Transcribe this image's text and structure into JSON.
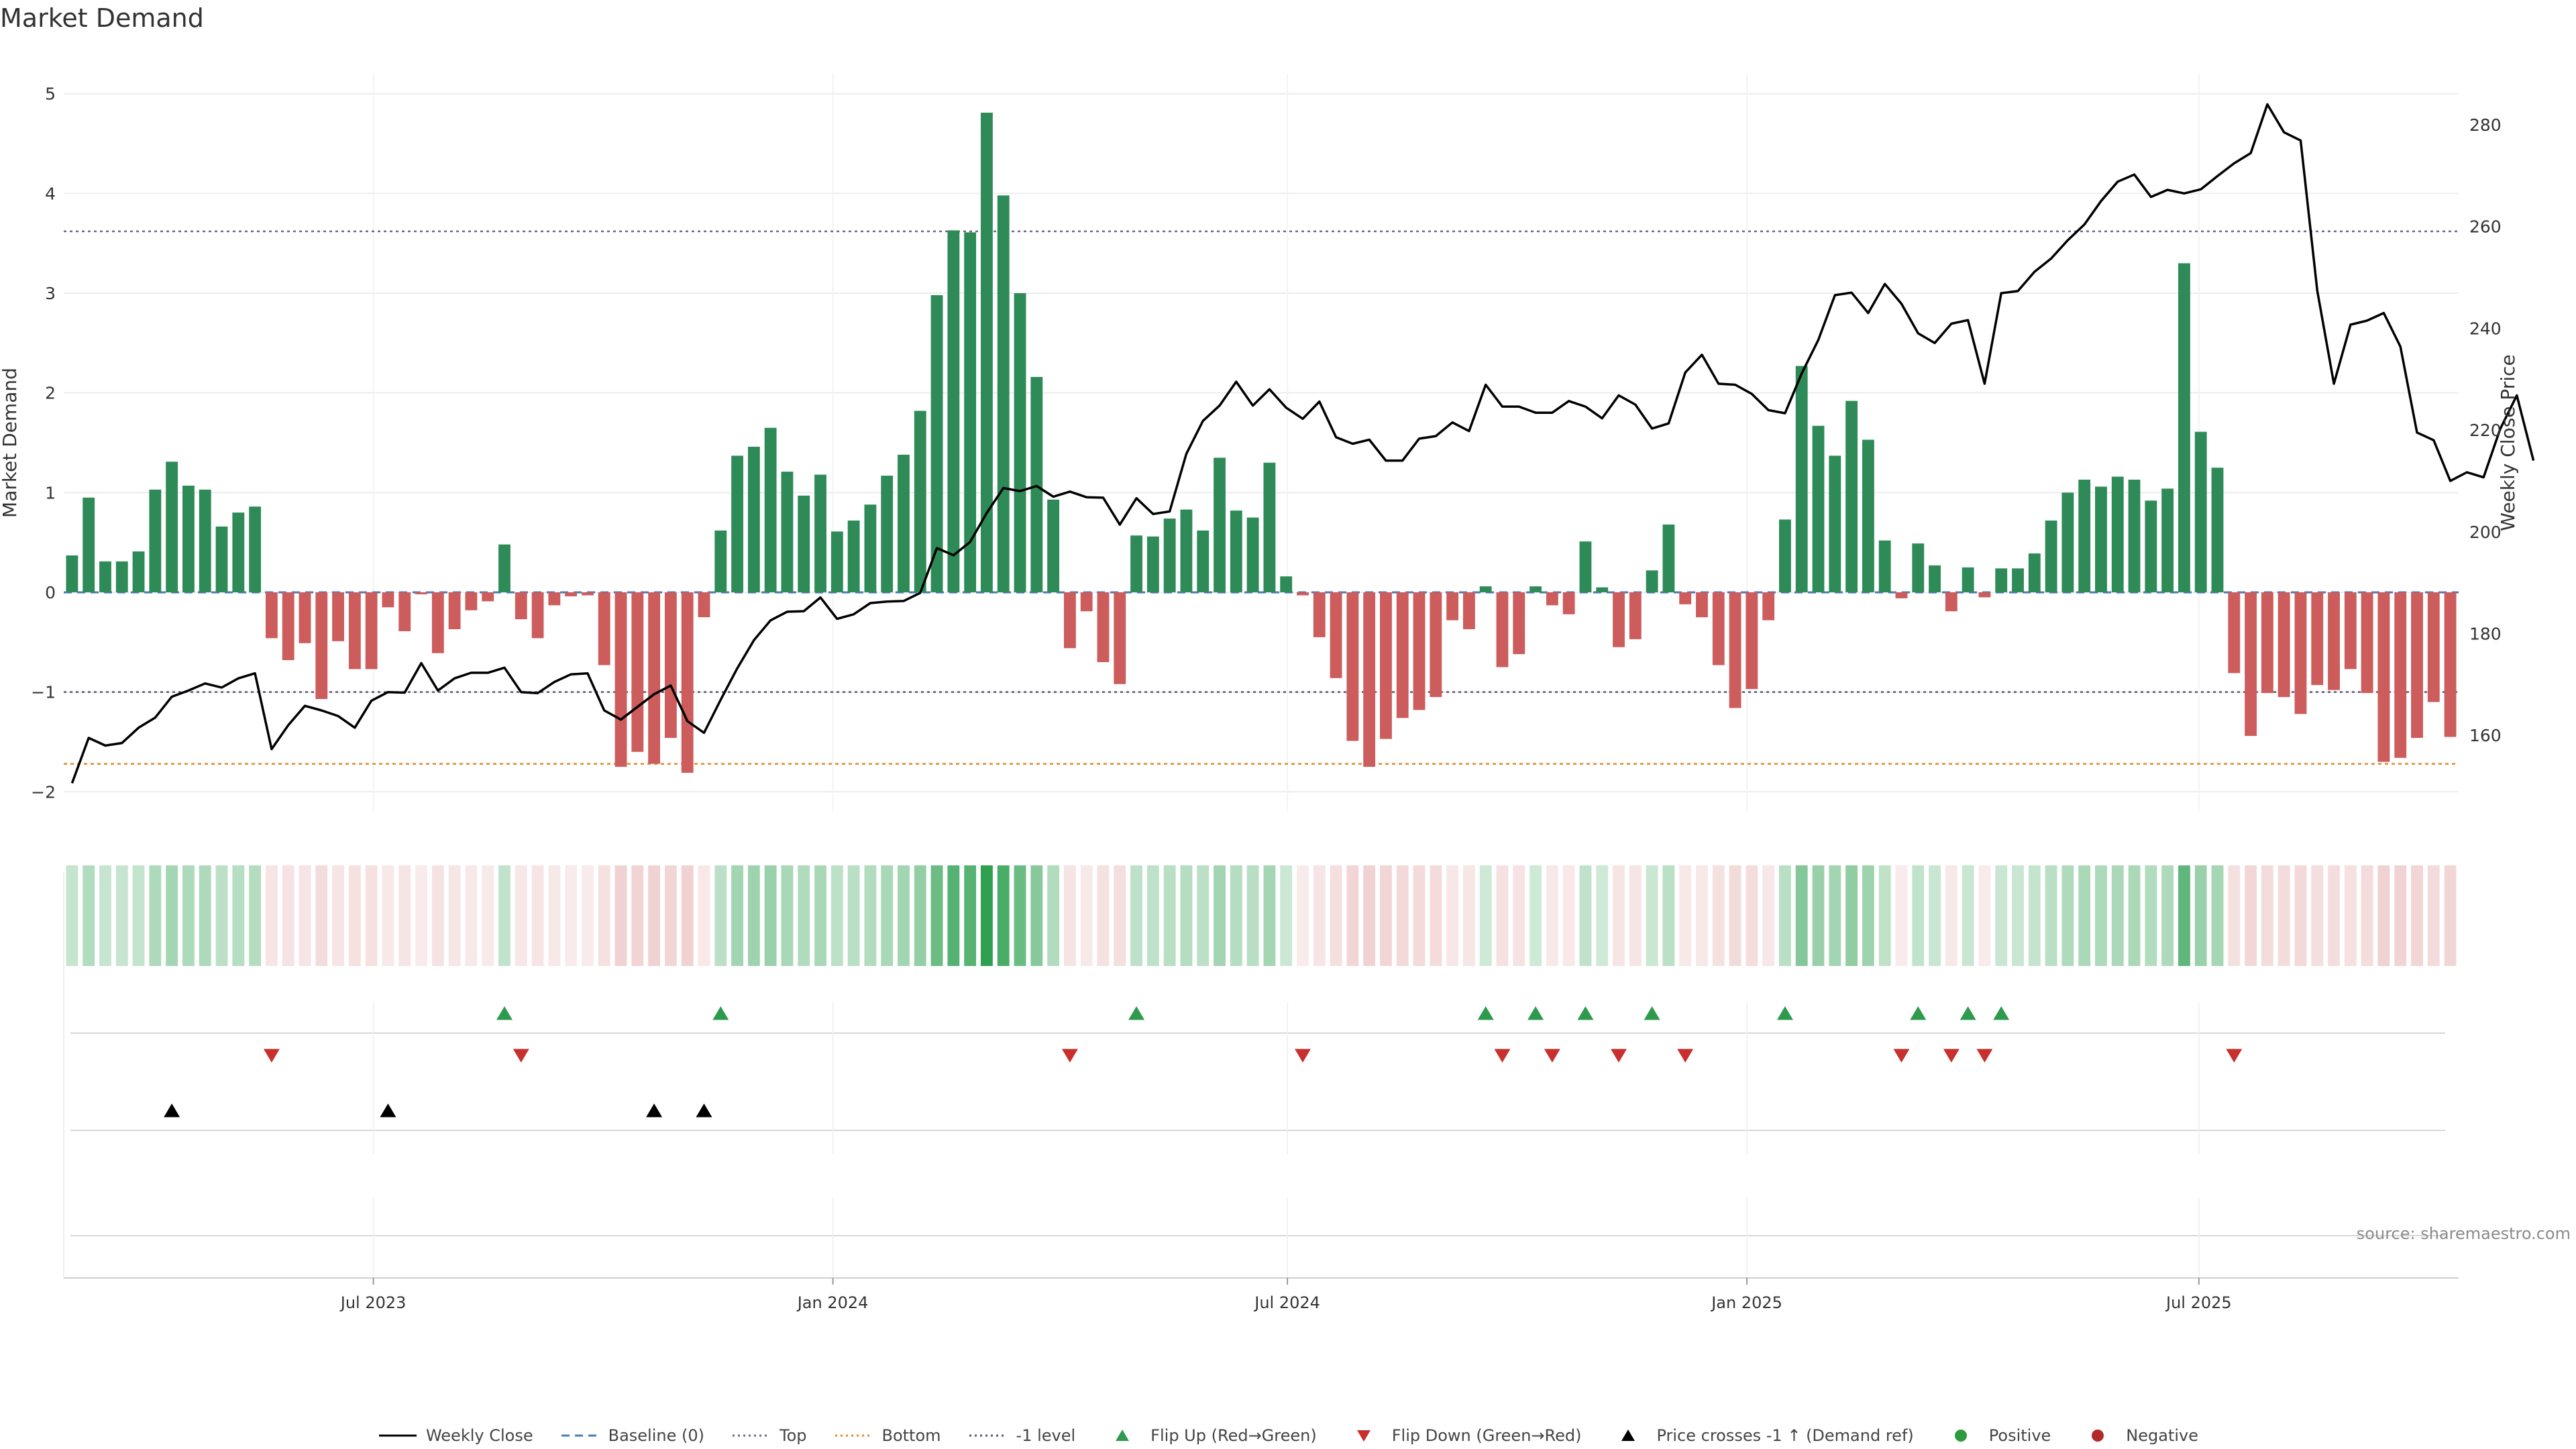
{
  "chart_data": {
    "type": "bar",
    "title": "Market Demand",
    "ylabel": "Market Demand",
    "y2label": "Weekly Close Price",
    "ylim": [
      -2.2,
      5.2
    ],
    "y2lim": [
      145,
      290
    ],
    "yticks": [
      -2,
      -1,
      0,
      1,
      2,
      3,
      4,
      5
    ],
    "y2ticks": [
      160,
      180,
      200,
      220,
      240,
      260,
      280
    ],
    "x_start": "2023-02-27",
    "x_end": "2025-10-13",
    "xticks": [
      {
        "date": "2023-07-01",
        "label": "Jul 2023"
      },
      {
        "date": "2024-01-01",
        "label": "Jan 2024"
      },
      {
        "date": "2024-07-01",
        "label": "Jul 2024"
      },
      {
        "date": "2025-01-01",
        "label": "Jan 2025"
      },
      {
        "date": "2025-07-01",
        "label": "Jul 2025"
      }
    ],
    "hlines": {
      "baseline": 0,
      "top": 3.62,
      "bottom": -1.72,
      "minus_one": -1
    },
    "series": [
      {
        "name": "Market Demand",
        "values": [
          0.37,
          0.95,
          0.31,
          0.31,
          0.41,
          1.03,
          1.31,
          1.07,
          1.03,
          0.66,
          0.8,
          0.86,
          -0.46,
          -0.68,
          -0.51,
          -1.07,
          -0.49,
          -0.77,
          -0.77,
          -0.15,
          -0.39,
          -0.02,
          -0.61,
          -0.37,
          -0.18,
          -0.09,
          0.48,
          -0.27,
          -0.46,
          -0.13,
          -0.04,
          -0.03,
          -0.73,
          -1.75,
          -1.6,
          -1.72,
          -1.46,
          -1.81,
          -0.25,
          0.62,
          1.37,
          1.46,
          1.65,
          1.21,
          0.97,
          1.18,
          0.61,
          0.72,
          0.88,
          1.17,
          1.38,
          1.82,
          2.98,
          3.63,
          3.61,
          4.81,
          3.98,
          3.0,
          2.16,
          0.93,
          -0.56,
          -0.19,
          -0.7,
          -0.92,
          0.57,
          0.56,
          0.74,
          0.83,
          0.62,
          1.35,
          0.82,
          0.75,
          1.3,
          0.16,
          -0.03,
          -0.45,
          -0.86,
          -1.49,
          -1.75,
          -1.47,
          -1.26,
          -1.18,
          -1.05,
          -0.28,
          -0.37,
          0.06,
          -0.75,
          -0.62,
          0.06,
          -0.13,
          -0.22,
          0.51,
          0.05,
          -0.55,
          -0.47,
          0.22,
          0.68,
          -0.12,
          -0.25,
          -0.73,
          -1.16,
          -0.97,
          -0.28,
          0.73,
          2.27,
          1.67,
          1.37,
          1.92,
          1.53,
          0.52,
          -0.06,
          0.49,
          0.27,
          -0.19,
          0.25,
          -0.05,
          0.24,
          0.24,
          0.39,
          0.72,
          1.0,
          1.13,
          1.06,
          1.16,
          1.13,
          0.92,
          1.04,
          3.3,
          1.61,
          1.25,
          -0.81,
          -1.44,
          -1.01,
          -1.05,
          -1.22,
          -0.93,
          -0.98,
          -0.77,
          -1.01,
          -1.7,
          -1.66,
          -1.46,
          -1.1,
          -1.45
        ]
      },
      {
        "name": "Weekly Close",
        "values": [
          150.6,
          159.5,
          158.0,
          158.5,
          161.5,
          163.5,
          167.6,
          168.8,
          170.2,
          169.4,
          171.2,
          172.2,
          157.3,
          162.0,
          165.8,
          164.9,
          163.8,
          161.5,
          166.8,
          168.5,
          168.4,
          174.2,
          168.8,
          171.2,
          172.3,
          172.3,
          173.3,
          168.5,
          168.3,
          170.5,
          172.0,
          172.2,
          164.9,
          163.1,
          165.6,
          168.1,
          169.8,
          162.8,
          160.5,
          167.0,
          173.2,
          178.7,
          182.6,
          184.3,
          184.4,
          187.1,
          182.9,
          183.8,
          186.0,
          186.3,
          186.4,
          188.0,
          196.8,
          195.4,
          198.0,
          203.7,
          208.6,
          208.0,
          209.0,
          206.9,
          207.9,
          206.8,
          206.7,
          201.4,
          206.6,
          203.5,
          204.0,
          215.3,
          221.8,
          224.8,
          229.5,
          224.8,
          228.0,
          224.4,
          222.2,
          225.6,
          218.6,
          217.3,
          218.1,
          214.0,
          214.0,
          218.3,
          218.8,
          221.5,
          219.8,
          228.9,
          224.6,
          224.6,
          223.4,
          223.4,
          225.7,
          224.6,
          222.3,
          226.8,
          225.0,
          220.3,
          221.3,
          231.3,
          234.8,
          229.1,
          228.9,
          227.1,
          223.9,
          223.3,
          231.1,
          237.7,
          246.5,
          247.0,
          243.0,
          248.7,
          244.8,
          239.0,
          237.1,
          240.9,
          241.6,
          229.1,
          246.9,
          247.3,
          251.1,
          253.7,
          257.3,
          260.4,
          265.0,
          268.8,
          270.2,
          265.8,
          267.2,
          266.5,
          267.3,
          269.9,
          272.4,
          274.4,
          284.0,
          278.5,
          276.9,
          247.4,
          229.1,
          240.7,
          241.5,
          243.0,
          236.4,
          219.5,
          218.0,
          210.0,
          211.7,
          210.7,
          220.2,
          226.8,
          214.0
        ]
      }
    ],
    "flip_up_index": [
      26,
      39,
      64,
      85,
      88,
      91,
      95,
      103,
      111,
      114,
      116
    ],
    "flip_down_index": [
      12,
      27,
      60,
      74,
      86,
      89,
      93,
      97,
      110,
      113,
      115,
      130
    ],
    "price_cross_index": [
      6,
      19,
      35,
      38
    ],
    "source_label": "source: sharemaestro.com",
    "legend": [
      {
        "label": "Weekly Close",
        "kind": "line",
        "color": "#000000"
      },
      {
        "label": "Baseline (0)",
        "kind": "dash",
        "color": "#4a7ab8"
      },
      {
        "label": "Top",
        "kind": "dot",
        "color": "#6a6a8a"
      },
      {
        "label": "Bottom",
        "kind": "dot",
        "color": "#e08a2a"
      },
      {
        "label": "-1 level",
        "kind": "dot",
        "color": "#555577"
      },
      {
        "label": "Flip Up (Red→Green)",
        "kind": "tri-up",
        "color": "#2e9a4e"
      },
      {
        "label": "Flip Down (Green→Red)",
        "kind": "tri-down",
        "color": "#c8302e"
      },
      {
        "label": "Price crosses -1 ↑ (Demand ref)",
        "kind": "tri-up",
        "color": "#000000"
      },
      {
        "label": "Positive",
        "kind": "dot-marker",
        "color": "#2e9a3e"
      },
      {
        "label": "Negative",
        "kind": "dot-marker",
        "color": "#b02a2a"
      }
    ],
    "colors": {
      "positive_bar": "#2e8b57",
      "negative_bar": "#cd5c5c",
      "price_line": "#000000",
      "grid": "#ececec",
      "axis_text": "#333333"
    }
  }
}
